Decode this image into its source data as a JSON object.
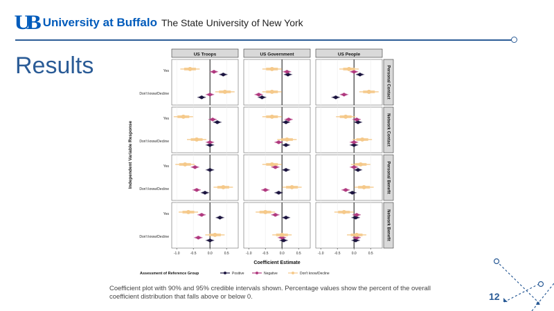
{
  "header": {
    "logo_mark": "UB",
    "university": "University at Buffalo",
    "suny": "The State University of New York"
  },
  "slide": {
    "title": "Results",
    "caption": "Coefficient plot with 90% and 95% credible intervals shown. Percentage values show the percent of the overall coefficient distribution that falls above or below 0.",
    "page_number": "12"
  },
  "colors": {
    "accent": "#2a5b96",
    "brand": "#005bbb",
    "positive": "#1c1540",
    "negative": "#b0397f",
    "dont_know": "#f5c98a"
  },
  "chart_data": {
    "type": "scatter",
    "title": "",
    "xlabel": "Coefficient Estimate",
    "ylabel": "Independent Variable Response",
    "xlim": [
      -1.15,
      0.85
    ],
    "x_ticks": [
      -1.0,
      -0.5,
      0.0,
      0.5
    ],
    "x_tick_labels": [
      "-1.0",
      "-0.5",
      "0.0",
      "0.5"
    ],
    "columns": [
      "US Troops",
      "US Government",
      "US People"
    ],
    "rows": [
      "Personal Contact",
      "Network Contact",
      "Personal Benefit",
      "Network Benefit"
    ],
    "y_categories": [
      "Yes",
      "Don't know/Decline"
    ],
    "legend": {
      "title": "Assessment of Reference Group",
      "placement": "bottom",
      "items": [
        "Positive",
        "Negative",
        "Don't know/Decline"
      ]
    },
    "grid": true,
    "panels": [
      {
        "row": "Personal Contact",
        "column": "US Troops",
        "Yes": {
          "Positive": 0.4,
          "Negative": 0.12,
          "Dont_know": -0.6
        },
        "Dont_know": {
          "Positive": -0.25,
          "Negative": 0.0,
          "Dont_know": 0.45
        }
      },
      {
        "row": "Personal Contact",
        "column": "US Government",
        "Yes": {
          "Positive": 0.18,
          "Negative": 0.15,
          "Dont_know": -0.3
        },
        "Dont_know": {
          "Positive": -0.6,
          "Negative": -0.7,
          "Dont_know": -0.3
        }
      },
      {
        "row": "Personal Contact",
        "column": "US People",
        "Yes": {
          "Positive": 0.18,
          "Negative": 0.0,
          "Dont_know": -0.15
        },
        "Dont_know": {
          "Positive": -0.55,
          "Negative": -0.3,
          "Dont_know": 0.45
        }
      },
      {
        "row": "Network Contact",
        "column": "US Troops",
        "Yes": {
          "Positive": 0.22,
          "Negative": 0.08,
          "Dont_know": -0.8
        },
        "Dont_know": {
          "Positive": 0.0,
          "Negative": 0.0,
          "Dont_know": -0.4
        }
      },
      {
        "row": "Network Contact",
        "column": "US Government",
        "Yes": {
          "Positive": 0.12,
          "Negative": 0.2,
          "Dont_know": -0.3
        },
        "Dont_know": {
          "Positive": 0.12,
          "Negative": -0.1,
          "Dont_know": 0.15
        }
      },
      {
        "row": "Network Contact",
        "column": "US People",
        "Yes": {
          "Positive": 0.12,
          "Negative": 0.08,
          "Dont_know": -0.25
        },
        "Dont_know": {
          "Positive": 0.0,
          "Negative": 0.0,
          "Dont_know": 0.25
        }
      },
      {
        "row": "Personal Benefit",
        "column": "US Troops",
        "Yes": {
          "Positive": 0.0,
          "Negative": -0.45,
          "Dont_know": -0.75
        },
        "Dont_know": {
          "Positive": -0.15,
          "Negative": -0.4,
          "Dont_know": 0.4
        }
      },
      {
        "row": "Personal Benefit",
        "column": "US Government",
        "Yes": {
          "Positive": 0.12,
          "Negative": -0.2,
          "Dont_know": -0.3
        },
        "Dont_know": {
          "Positive": -0.1,
          "Negative": -0.5,
          "Dont_know": 0.3
        }
      },
      {
        "row": "Personal Benefit",
        "column": "US People",
        "Yes": {
          "Positive": 0.12,
          "Negative": 0.0,
          "Dont_know": 0.2
        },
        "Dont_know": {
          "Positive": -0.05,
          "Negative": -0.25,
          "Dont_know": 0.3
        }
      },
      {
        "row": "Network Benefit",
        "column": "US Troops",
        "Yes": {
          "Positive": 0.3,
          "Negative": -0.25,
          "Dont_know": -0.65
        },
        "Dont_know": {
          "Positive": 0.0,
          "Negative": -0.35,
          "Dont_know": 0.15
        }
      },
      {
        "row": "Network Benefit",
        "column": "US Government",
        "Yes": {
          "Positive": 0.12,
          "Negative": -0.2,
          "Dont_know": -0.5
        },
        "Dont_know": {
          "Positive": 0.05,
          "Negative": 0.0,
          "Dont_know": 0.0
        }
      },
      {
        "row": "Network Benefit",
        "column": "US People",
        "Yes": {
          "Positive": 0.05,
          "Negative": 0.08,
          "Dont_know": -0.3
        },
        "Dont_know": {
          "Positive": 0.05,
          "Negative": 0.08,
          "Dont_know": 0.08
        }
      }
    ]
  }
}
